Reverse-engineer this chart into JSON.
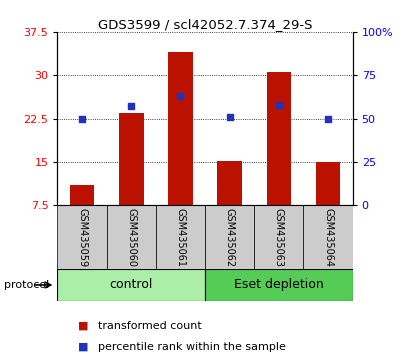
{
  "title": "GDS3599 / scl42052.7.374_29-S",
  "samples": [
    "GSM435059",
    "GSM435060",
    "GSM435061",
    "GSM435062",
    "GSM435063",
    "GSM435064"
  ],
  "red_values": [
    11.0,
    23.5,
    34.0,
    15.2,
    30.5,
    15.0
  ],
  "blue_values_pct": [
    50,
    57,
    63,
    51,
    58,
    50
  ],
  "ylim_left": [
    7.5,
    37.5
  ],
  "ylim_right": [
    0,
    100
  ],
  "yticks_left": [
    7.5,
    15,
    22.5,
    30,
    37.5
  ],
  "yticks_right": [
    0,
    25,
    50,
    75,
    100
  ],
  "ytick_labels_right": [
    "0",
    "25",
    "50",
    "75",
    "100%"
  ],
  "groups": [
    {
      "label": "control",
      "indices": [
        0,
        1,
        2
      ],
      "color": "#aaeea8"
    },
    {
      "label": "Eset depletion",
      "indices": [
        3,
        4,
        5
      ],
      "color": "#55cc55"
    }
  ],
  "bar_color": "#bb1100",
  "blue_color": "#2233bb",
  "bar_width": 0.5,
  "sample_box_color": "#cccccc",
  "title_fontsize": 9.5,
  "tick_fontsize": 8,
  "legend_fontsize": 8,
  "group_label_fontsize": 9
}
